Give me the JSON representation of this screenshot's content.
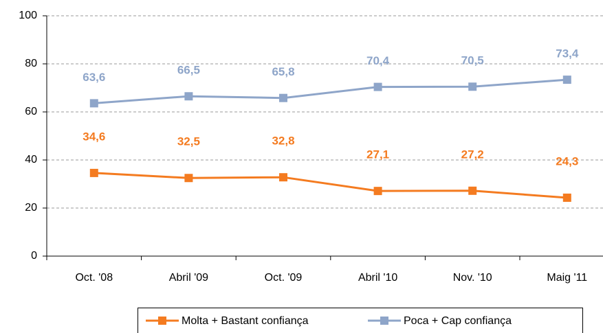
{
  "chart_data": {
    "type": "line",
    "categories": [
      "Oct. '08",
      "Abril '09",
      "Oct. '09",
      "Abril '10",
      "Nov. '10",
      "Maig '11"
    ],
    "series": [
      {
        "name": "Molta + Bastant confiança",
        "color": "#f47b20",
        "values": [
          34.6,
          32.5,
          32.8,
          27.1,
          27.2,
          24.3
        ],
        "value_labels": [
          "34,6",
          "32,5",
          "32,8",
          "27,1",
          "27,2",
          "24,3"
        ]
      },
      {
        "name": "Poca + Cap confiança",
        "color": "#8ea5c9",
        "values": [
          63.6,
          66.5,
          65.8,
          70.4,
          70.5,
          73.4
        ],
        "value_labels": [
          "63,6",
          "66,5",
          "65,8",
          "70,4",
          "70,5",
          "73,4"
        ]
      }
    ],
    "ylim": [
      0,
      100
    ],
    "yticks": [
      0,
      20,
      40,
      60,
      80,
      100
    ],
    "grid": true,
    "legend": "bottom"
  }
}
